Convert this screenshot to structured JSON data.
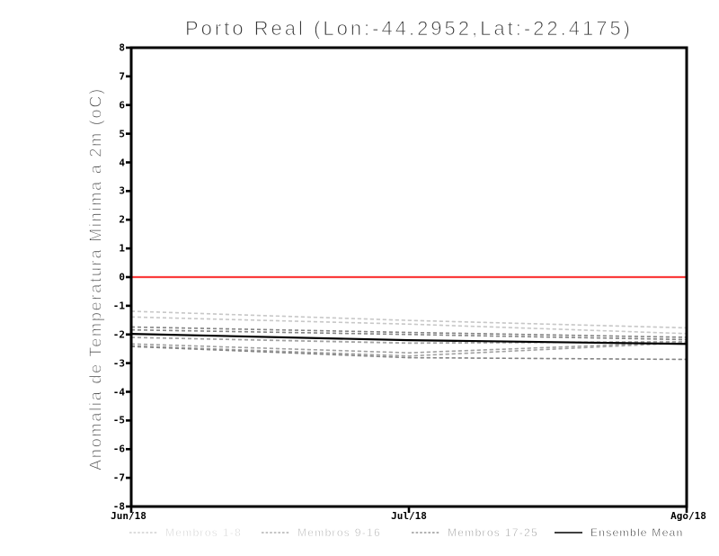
{
  "chart_data": {
    "type": "line",
    "title": "Porto Real (Lon:-44.2952,Lat:-22.4175)",
    "ylabel": "Anomalia de Temperatura Minima a 2m (oC)",
    "xlabel": "",
    "x_tick_labels": [
      "Jun/18",
      "Jul/18",
      "Ago/18"
    ],
    "y_ticks": [
      8,
      7,
      6,
      5,
      4,
      3,
      2,
      1,
      0,
      -1,
      -2,
      -3,
      -4,
      -5,
      -6,
      -7,
      -8
    ],
    "ylim": [
      -8,
      8
    ],
    "grid": "off",
    "legend_position": "bottom",
    "zero_line": {
      "value": 0,
      "color": "#fa3c3c"
    },
    "axis_color": "#000000",
    "member_groups": [
      {
        "name": "Membros 1-8",
        "color": "#c8c8c8",
        "style": "dashed",
        "members": [
          [
            -1.197,
            -1.517,
            -1.777
          ],
          [
            -1.19,
            -1.51,
            -1.77
          ],
          [
            -1.183,
            -1.503,
            -1.763
          ],
          [
            -1.397,
            -1.647,
            -1.977
          ],
          [
            -1.39,
            -1.64,
            -1.97
          ],
          [
            -1.383,
            -1.633,
            -1.963
          ],
          [
            -2.102,
            -2.302,
            -2.252
          ],
          [
            -2.088,
            -2.288,
            -2.238
          ]
        ]
      },
      {
        "name": "Membros 9-16",
        "color": "#a2a2a2",
        "style": "dashed",
        "members": [
          [
            -2.112,
            -2.312,
            -2.262
          ],
          [
            -2.098,
            -2.298,
            -2.248
          ],
          [
            -2.337,
            -2.647,
            -2.277
          ],
          [
            -2.33,
            -2.64,
            -2.27
          ],
          [
            -2.323,
            -2.633,
            -2.263
          ],
          [
            -2.407,
            -2.757,
            -2.297
          ],
          [
            -2.4,
            -2.75,
            -2.29
          ],
          [
            -2.393,
            -2.743,
            -2.283
          ]
        ]
      },
      {
        "name": "Membros 17-25",
        "color": "#858585",
        "style": "dashed",
        "members": [
          [
            -1.747,
            -1.937,
            -2.107
          ],
          [
            -1.74,
            -1.93,
            -2.1
          ],
          [
            -1.733,
            -1.923,
            -2.093
          ],
          [
            -1.847,
            -2.007,
            -2.187
          ],
          [
            -1.84,
            -2.0,
            -2.18
          ],
          [
            -1.833,
            -1.993,
            -2.173
          ],
          [
            -2.427,
            -2.817,
            -2.877
          ],
          [
            -2.42,
            -2.81,
            -2.87
          ],
          [
            -2.413,
            -2.803,
            -2.863
          ]
        ]
      }
    ],
    "ensemble_mean": {
      "name": "Ensemble Mean",
      "color": "#000000",
      "style": "solid",
      "values": [
        -1.98,
        -2.2,
        -2.33
      ]
    },
    "legend": [
      {
        "label": "Membros 1-8",
        "color": "#c8c8c8",
        "style": "dashed",
        "left": 144
      },
      {
        "label": "Membros 9-16",
        "color": "#a2a2a2",
        "style": "dashed",
        "left": 291
      },
      {
        "label": "Membros 17-25",
        "color": "#858585",
        "style": "dashed",
        "left": 458
      },
      {
        "label": "Ensemble Mean",
        "color": "#000000",
        "style": "solid",
        "left": 617
      }
    ]
  }
}
